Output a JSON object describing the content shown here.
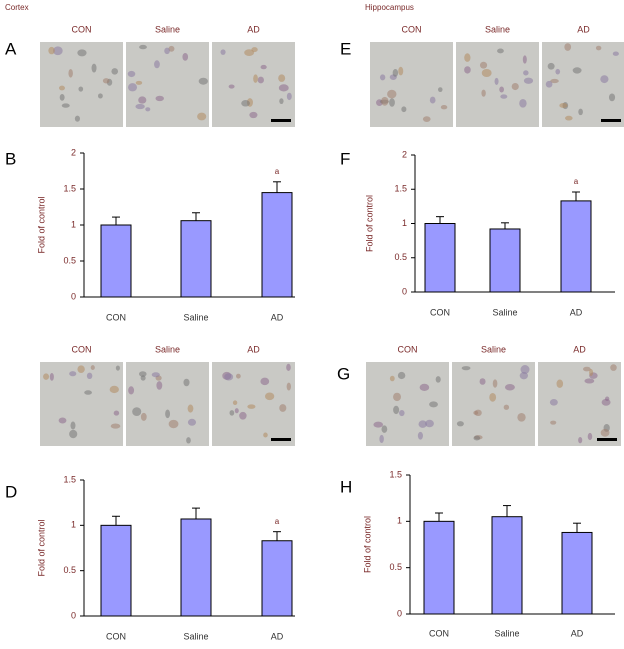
{
  "sections": [
    "Cortex",
    "Hippocampus"
  ],
  "micrographs": [
    {
      "panel": "A",
      "labels": [
        "CON",
        "Saline",
        "AD"
      ]
    },
    {
      "panel": "E",
      "labels": [
        "CON",
        "Saline",
        "AD"
      ]
    },
    {
      "labels": [
        "CON",
        "Saline",
        "AD"
      ]
    },
    {
      "panel": "G",
      "labels": [
        "CON",
        "Saline",
        "AD"
      ]
    }
  ],
  "chart_data": [
    {
      "type": "bar",
      "panel": "B",
      "y_label": "Fold of control",
      "categories": [
        "CON",
        "Saline",
        "AD"
      ],
      "values": [
        1.0,
        1.06,
        1.45
      ],
      "errors": [
        0.11,
        0.11,
        0.15
      ],
      "color": "#9999ff",
      "ylim": [
        0,
        2
      ],
      "yticks": [
        0,
        0.5,
        1,
        1.5,
        2
      ],
      "annotations": [
        {
          "text": "a",
          "category": "AD"
        }
      ]
    },
    {
      "type": "bar",
      "panel": "F",
      "y_label": "Fold of control",
      "categories": [
        "CON",
        "Saline",
        "AD"
      ],
      "values": [
        1.0,
        0.92,
        1.33
      ],
      "errors": [
        0.1,
        0.09,
        0.13
      ],
      "color": "#9999ff",
      "ylim": [
        0,
        2
      ],
      "yticks": [
        0,
        0.5,
        1,
        1.5,
        2
      ],
      "annotations": [
        {
          "text": "a",
          "category": "AD"
        }
      ]
    },
    {
      "type": "bar",
      "panel": "D",
      "y_label": "Fold of control",
      "categories": [
        "CON",
        "Saline",
        "AD"
      ],
      "values": [
        1.0,
        1.07,
        0.83
      ],
      "errors": [
        0.1,
        0.12,
        0.1
      ],
      "color": "#9999ff",
      "ylim": [
        0,
        1.5
      ],
      "yticks": [
        0,
        0.5,
        1,
        1.5
      ],
      "annotations": [
        {
          "text": "a",
          "category": "AD"
        }
      ]
    },
    {
      "type": "bar",
      "panel": "H",
      "y_label": "Fold of control",
      "categories": [
        "CON",
        "Saline",
        "AD"
      ],
      "values": [
        1.0,
        1.05,
        0.88
      ],
      "errors": [
        0.09,
        0.12,
        0.1
      ],
      "color": "#9999ff",
      "ylim": [
        0,
        1.5
      ],
      "yticks": [
        0,
        0.5,
        1,
        1.5
      ]
    }
  ]
}
